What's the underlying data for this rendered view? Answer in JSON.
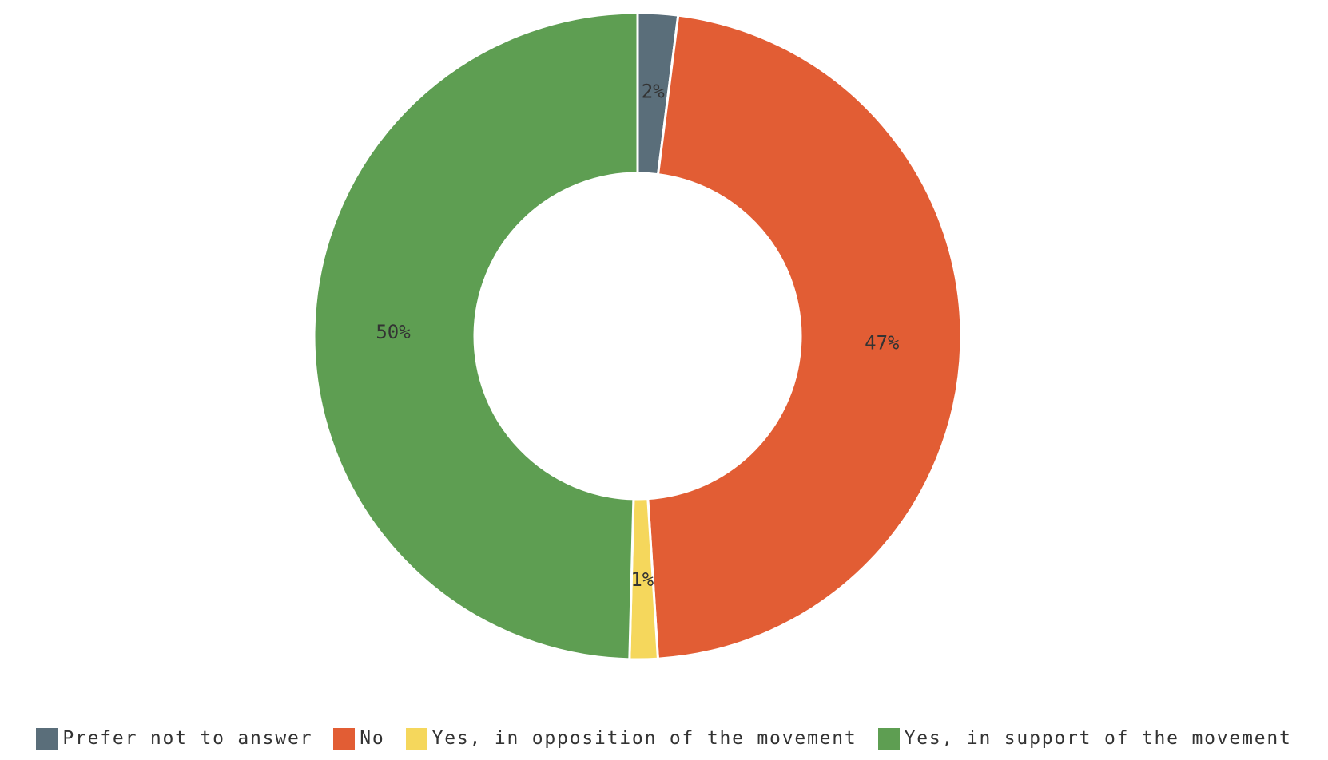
{
  "chart_data": {
    "type": "pie",
    "donut": true,
    "legend_position": "bottom",
    "slices": [
      {
        "label": "Prefer not to answer",
        "value": 2,
        "value_label": "2%",
        "color": "#5a6e7a"
      },
      {
        "label": "No",
        "value": 47,
        "value_label": "47%",
        "color": "#e25d34"
      },
      {
        "label": "Yes, in opposition of the movement",
        "value": 1.4,
        "value_label": "1%",
        "color": "#f5d75c"
      },
      {
        "label": "Yes, in support of the movement",
        "value": 49.6,
        "value_label": "50%",
        "color": "#5e9e52"
      }
    ]
  }
}
